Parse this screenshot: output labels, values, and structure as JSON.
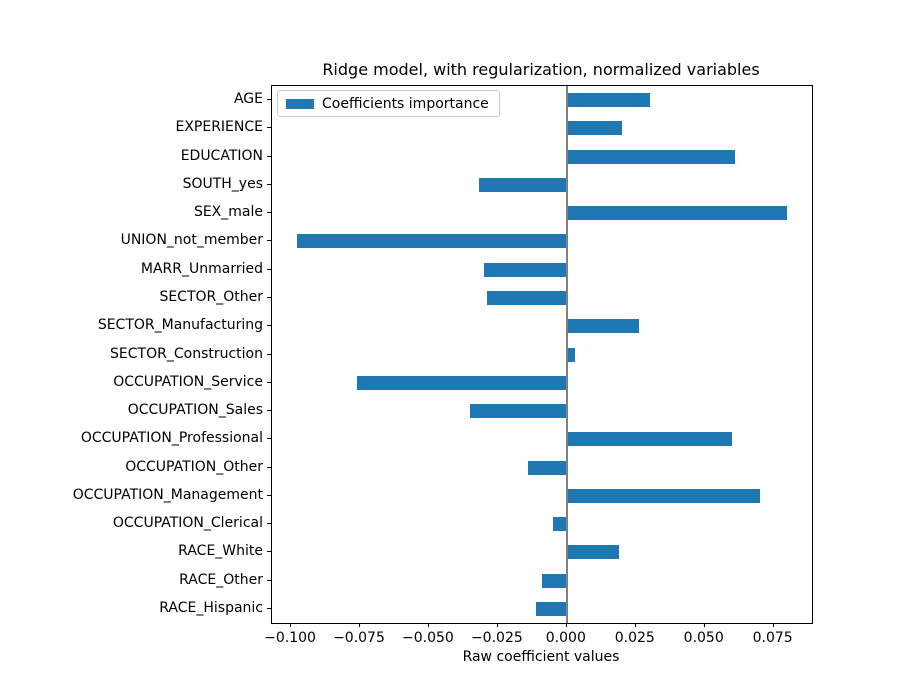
{
  "chart_data": {
    "type": "bar",
    "orientation": "horizontal",
    "title": "Ridge model, with regularization, normalized variables",
    "xlabel": "Raw coefficient values",
    "ylabel": "",
    "legend": [
      "Coefficients importance"
    ],
    "legend_position": "upper-left",
    "grid": false,
    "categories": [
      "AGE",
      "EXPERIENCE",
      "EDUCATION",
      "SOUTH_yes",
      "SEX_male",
      "UNION_not_member",
      "MARR_Unmarried",
      "SECTOR_Other",
      "SECTOR_Manufacturing",
      "SECTOR_Construction",
      "OCCUPATION_Service",
      "OCCUPATION_Sales",
      "OCCUPATION_Professional",
      "OCCUPATION_Other",
      "OCCUPATION_Management",
      "OCCUPATION_Clerical",
      "RACE_White",
      "RACE_Other",
      "RACE_Hispanic"
    ],
    "values": [
      0.03,
      0.02,
      0.061,
      -0.032,
      0.08,
      -0.098,
      -0.03,
      -0.029,
      0.026,
      0.003,
      -0.076,
      -0.035,
      0.06,
      -0.014,
      0.07,
      -0.005,
      0.019,
      -0.009,
      -0.011
    ],
    "xlim": [
      -0.1069,
      0.0889
    ],
    "xticks": [
      -0.1,
      -0.075,
      -0.05,
      -0.025,
      0.0,
      0.025,
      0.05,
      0.075
    ],
    "xtick_labels": [
      "−0.100",
      "−0.075",
      "−0.050",
      "−0.025",
      "0.000",
      "0.025",
      "0.050",
      "0.075"
    ],
    "zero_reference_line": 0,
    "colors": {
      "bar": "#1f77b4",
      "zero_line": "#808080",
      "spine": "#000000",
      "legend_border": "#cccccc",
      "text": "#000000"
    }
  }
}
